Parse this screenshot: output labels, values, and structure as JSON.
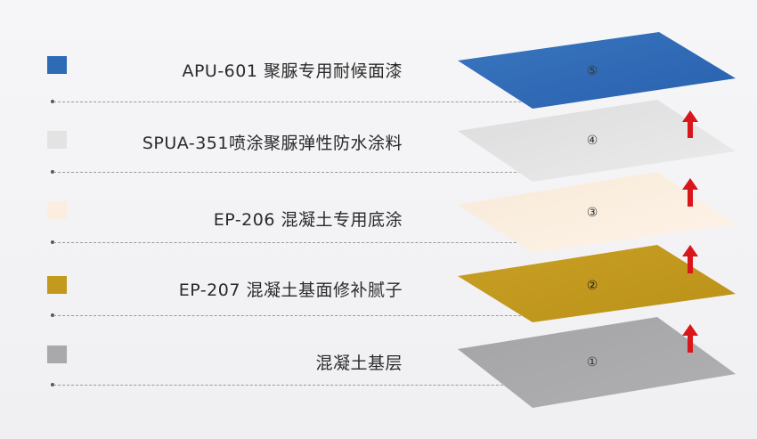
{
  "layers": [
    {
      "number": "⑤",
      "label": "APU-601 聚脲专用耐候面漆",
      "color": "#2e6bb5"
    },
    {
      "number": "④",
      "label": "SPUA-351喷涂聚脲弹性防水涂料",
      "color": "#e3e3e3"
    },
    {
      "number": "③",
      "label": "EP-206 混凝土专用底涂",
      "color": "#fbeee0"
    },
    {
      "number": "②",
      "label": "EP-207 混凝土基面修补腻子",
      "color": "#c39a1e"
    },
    {
      "number": "①",
      "label": "混凝土基层",
      "color": "#a9a9ab"
    }
  ],
  "arrow_color": "#d8161b"
}
